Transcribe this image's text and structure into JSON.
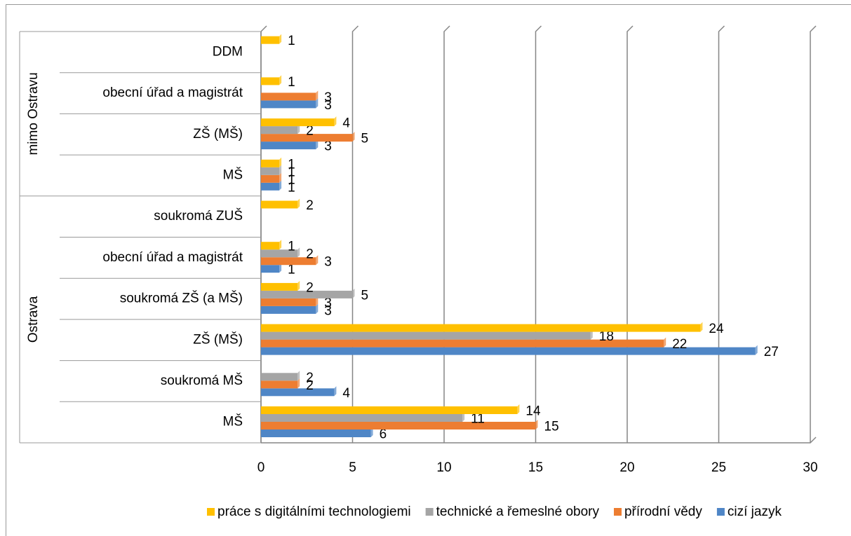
{
  "chart_data": {
    "type": "bar",
    "orientation": "horizontal",
    "groups": [
      {
        "label": "Ostrava",
        "categories": [
          "MŠ",
          "soukromá MŠ",
          "ZŠ (MŠ)",
          "soukromá ZŠ (a MŠ)",
          "obecní úřad a magistrát",
          "soukromá ZUŠ"
        ]
      },
      {
        "label": "mimo Ostravu",
        "categories": [
          "MŠ",
          "ZŠ (MŠ)",
          "obecní úřad a magistrát",
          "DDM"
        ]
      }
    ],
    "series": [
      {
        "name": "cizí jazyk",
        "color": "#4f86c6",
        "values": [
          6,
          4,
          27,
          3,
          1,
          null,
          1,
          3,
          3,
          null
        ]
      },
      {
        "name": "přírodní vědy",
        "color": "#ed7d31",
        "values": [
          15,
          2,
          22,
          3,
          3,
          null,
          1,
          5,
          3,
          null
        ]
      },
      {
        "name": "technické a řemeslné obory",
        "color": "#a5a5a5",
        "values": [
          11,
          2,
          18,
          5,
          2,
          null,
          1,
          2,
          null,
          null
        ]
      },
      {
        "name": "práce s digitálními technologiemi",
        "color": "#ffc000",
        "values": [
          14,
          null,
          24,
          2,
          1,
          2,
          1,
          4,
          1,
          1
        ]
      }
    ],
    "xlim": [
      0,
      30
    ],
    "xticks": [
      0,
      5,
      10,
      15,
      20,
      25,
      30
    ],
    "grid": true,
    "legend": "bottom"
  }
}
